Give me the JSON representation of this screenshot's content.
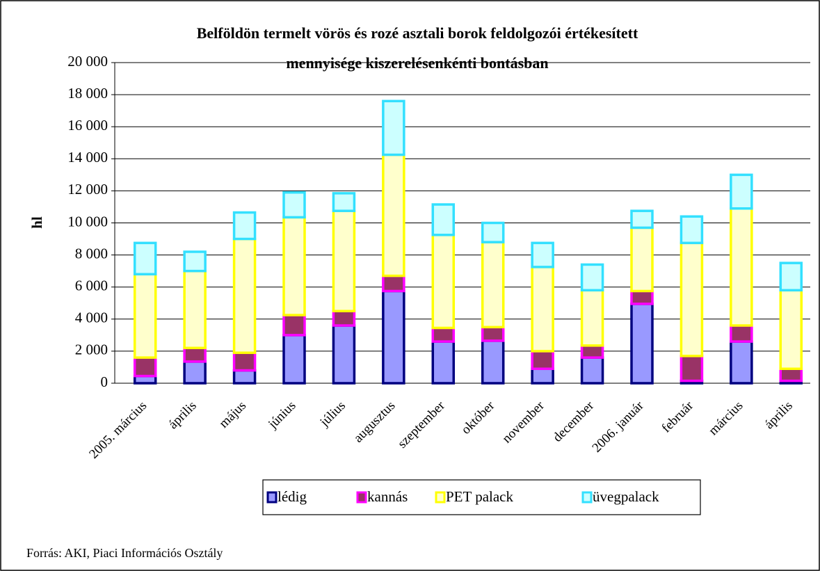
{
  "chart_data": {
    "type": "stacked_bar",
    "title": [
      "Belföldön termelt vörös és rozé asztali borok feldolgozói értékesített",
      "mennyisége kiszerelésenkénti bontásban"
    ],
    "ylabel": "hl",
    "source": "Forrás: AKI, Piaci Információs Osztály",
    "categories": [
      "2005. március",
      "április",
      "május",
      "június",
      "július",
      "augusztus",
      "szeptember",
      "október",
      "november",
      "december",
      "2006. január",
      "február",
      "március",
      "április"
    ],
    "series": [
      {
        "name": "lédig",
        "color": "#9999ff",
        "edge_color": "#000080",
        "values": [
          450,
          1350,
          800,
          3000,
          3600,
          5750,
          2600,
          2650,
          900,
          1600,
          4950,
          150,
          2600,
          150
        ]
      },
      {
        "name": "kannás",
        "color": "#993366",
        "edge_color": "#ff00ff",
        "values": [
          1150,
          850,
          1100,
          1250,
          900,
          950,
          850,
          850,
          1100,
          750,
          800,
          1550,
          1000,
          750
        ]
      },
      {
        "name": "PET palack",
        "color": "#ffffcc",
        "edge_color": "#ffff00",
        "values": [
          5200,
          4800,
          7100,
          6100,
          6250,
          7550,
          5800,
          5300,
          5250,
          3450,
          3950,
          7050,
          7300,
          4900
        ]
      },
      {
        "name": "üvegpalack",
        "color": "#ccffff",
        "edge_color": "#33e0ff",
        "values": [
          1950,
          1200,
          1650,
          1550,
          1100,
          3350,
          1900,
          1200,
          1500,
          1600,
          1050,
          1650,
          2100,
          1700
        ]
      }
    ],
    "ylim": [
      0,
      20000
    ],
    "yticks": [
      0,
      {
        "value": 2000,
        "label": "2 000"
      },
      {
        "value": 4000,
        "label": "4 000"
      },
      {
        "value": 6000,
        "label": "6 000"
      },
      {
        "value": 8000,
        "label": "8 000"
      },
      {
        "value": 10000,
        "label": "10 000"
      },
      {
        "value": 12000,
        "label": "12 000"
      },
      {
        "value": 14000,
        "label": "14 000"
      },
      {
        "value": 16000,
        "label": "16 000"
      },
      {
        "value": 18000,
        "label": "18 000"
      },
      {
        "value": 20000,
        "label": "20 000"
      }
    ],
    "grid": true,
    "legend": "bottom"
  }
}
